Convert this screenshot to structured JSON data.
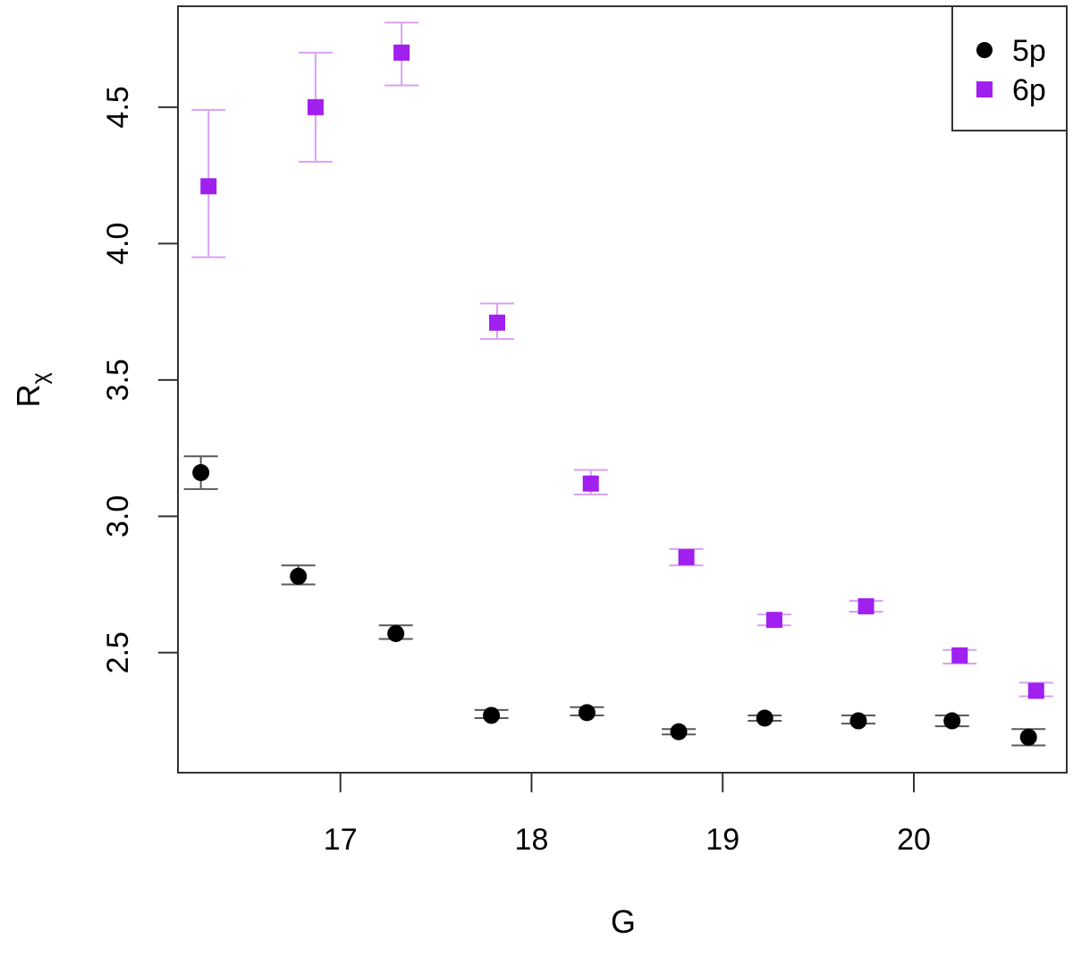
{
  "chart_data": {
    "type": "scatter",
    "title": "",
    "xlabel": "G",
    "ylabel_main": "R",
    "ylabel_sub": "χ",
    "xlim": [
      16.15,
      20.8
    ],
    "ylim": [
      2.06,
      4.87
    ],
    "x_ticks": [
      17,
      18,
      19,
      20
    ],
    "x_tick_labels": [
      "17",
      "18",
      "19",
      "20"
    ],
    "y_ticks": [
      2.5,
      3.0,
      3.5,
      4.0,
      4.5
    ],
    "y_tick_labels": [
      "2.5",
      "3.0",
      "3.5",
      "4.0",
      "4.5"
    ],
    "grid": false,
    "legend_position": "top-right",
    "legend": [
      "5p",
      "6p"
    ],
    "series": [
      {
        "name": "5p",
        "marker": "circle",
        "color": "#000000",
        "errbar_color": "#5a5a5a",
        "points": [
          {
            "x": 16.27,
            "y": 3.16,
            "lo": 3.1,
            "hi": 3.22
          },
          {
            "x": 16.78,
            "y": 2.78,
            "lo": 2.75,
            "hi": 2.82
          },
          {
            "x": 17.29,
            "y": 2.57,
            "lo": 2.55,
            "hi": 2.6
          },
          {
            "x": 17.79,
            "y": 2.27,
            "lo": 2.26,
            "hi": 2.29
          },
          {
            "x": 18.29,
            "y": 2.28,
            "lo": 2.27,
            "hi": 2.3
          },
          {
            "x": 18.77,
            "y": 2.21,
            "lo": 2.2,
            "hi": 2.22
          },
          {
            "x": 19.22,
            "y": 2.26,
            "lo": 2.25,
            "hi": 2.27
          },
          {
            "x": 19.71,
            "y": 2.25,
            "lo": 2.24,
            "hi": 2.27
          },
          {
            "x": 20.2,
            "y": 2.25,
            "lo": 2.23,
            "hi": 2.27
          },
          {
            "x": 20.6,
            "y": 2.19,
            "lo": 2.16,
            "hi": 2.22
          }
        ]
      },
      {
        "name": "6p",
        "marker": "square",
        "color": "#a020f0",
        "errbar_color": "#d9a0f5",
        "points": [
          {
            "x": 16.31,
            "y": 4.21,
            "lo": 3.95,
            "hi": 4.49
          },
          {
            "x": 16.87,
            "y": 4.5,
            "lo": 4.3,
            "hi": 4.7
          },
          {
            "x": 17.32,
            "y": 4.7,
            "lo": 4.58,
            "hi": 4.81
          },
          {
            "x": 17.82,
            "y": 3.71,
            "lo": 3.65,
            "hi": 3.78
          },
          {
            "x": 18.31,
            "y": 3.12,
            "lo": 3.08,
            "hi": 3.17
          },
          {
            "x": 18.81,
            "y": 2.85,
            "lo": 2.82,
            "hi": 2.88
          },
          {
            "x": 19.27,
            "y": 2.62,
            "lo": 2.6,
            "hi": 2.64
          },
          {
            "x": 19.75,
            "y": 2.67,
            "lo": 2.65,
            "hi": 2.69
          },
          {
            "x": 20.24,
            "y": 2.49,
            "lo": 2.46,
            "hi": 2.51
          },
          {
            "x": 20.64,
            "y": 2.36,
            "lo": 2.34,
            "hi": 2.39
          }
        ]
      }
    ]
  }
}
